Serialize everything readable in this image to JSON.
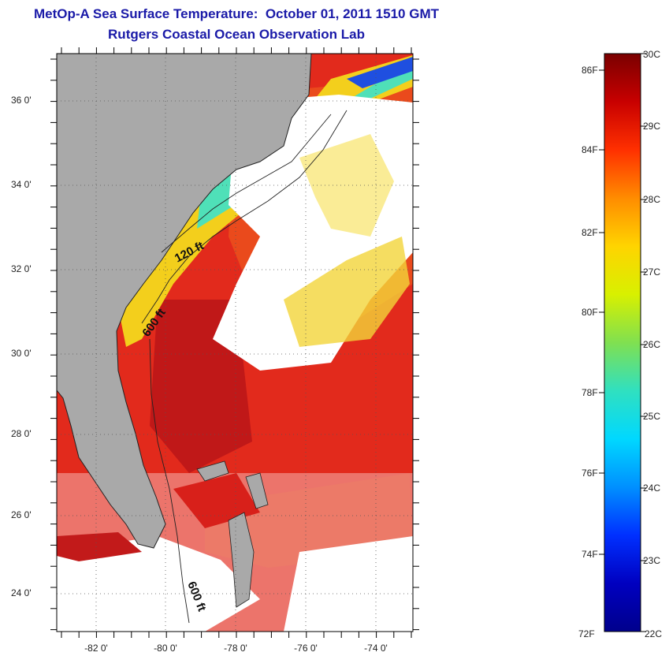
{
  "title": "MetOp-A Sea Surface Temperature:  October 01, 2011 1510 GMT",
  "subtitle": "Rutgers Coastal Ocean Observation Lab",
  "y_axis_labels": [
    "36 0'",
    "34 0'",
    "32 0'",
    "30 0'",
    "28 0'",
    "26 0'",
    "24 0'"
  ],
  "x_axis_labels": [
    "-82 0'",
    "-80 0'",
    "-78 0'",
    "-76 0'",
    "-74 0'"
  ],
  "contour_labels": [
    "120 ft",
    "600 ft",
    "600 ft"
  ],
  "colorbar": {
    "fahrenheit_labels": [
      "86F",
      "84F",
      "82F",
      "80F",
      "78F",
      "76F",
      "74F",
      "72F"
    ],
    "celsius_labels": [
      "30C",
      "29C",
      "28C",
      "27C",
      "26C",
      "25C",
      "24C",
      "23C",
      "22C"
    ],
    "colors": [
      "#7a0000",
      "#c80000",
      "#ff3000",
      "#ff8c00",
      "#ffd400",
      "#d8f000",
      "#80e050",
      "#30e0c0",
      "#00d8ff",
      "#0090ff",
      "#0030ff",
      "#0000c0",
      "#00008c"
    ]
  },
  "colors": {
    "land": "#a9a9a9",
    "cloud": "#ffffff",
    "title": "#1a1aa8",
    "warm": "#e8281a",
    "hot": "#c21a1a",
    "mid": "#f08a1a",
    "cool": "#f3dd1c",
    "shelf": "#3fd6c8"
  }
}
